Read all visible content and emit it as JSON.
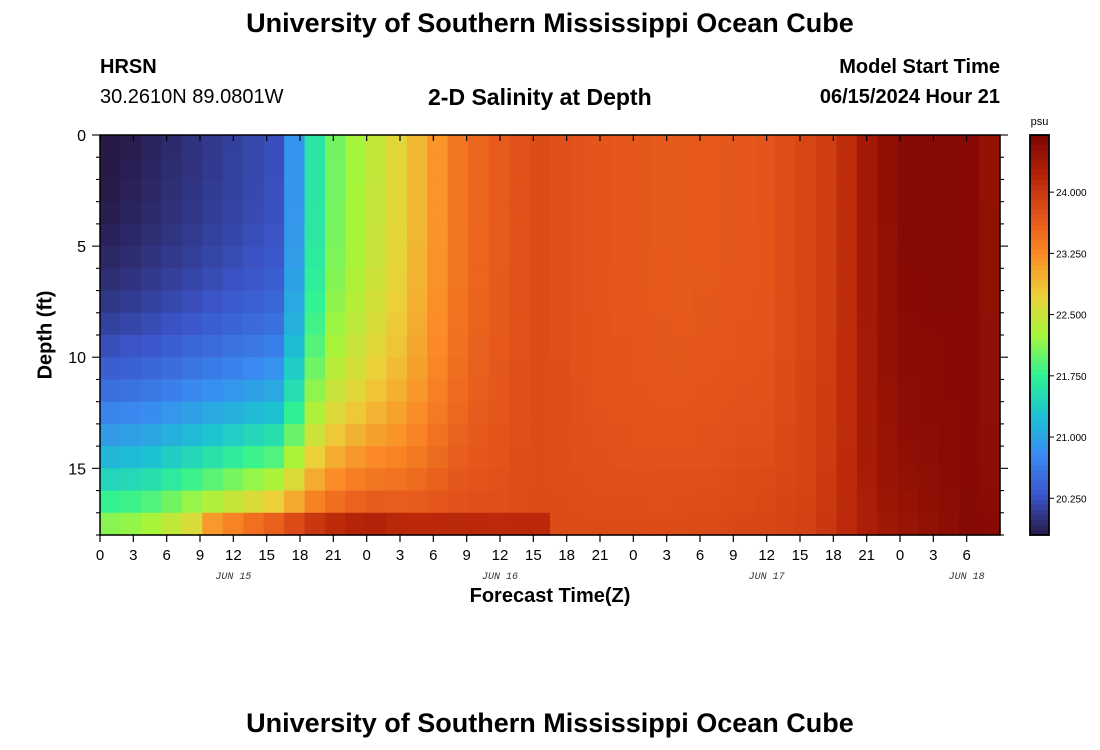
{
  "page": {
    "title": "University of Southern Mississippi Ocean Cube",
    "footer_title": "University of Southern Mississippi Ocean Cube",
    "station": "HRSN",
    "coords": "30.2610N  89.0801W",
    "subtitle": "2-D Salinity at Depth",
    "model_start_label": "Model Start Time",
    "model_start_value": "06/15/2024 Hour 21"
  },
  "chart_data": {
    "type": "heatmap",
    "title": "2-D Salinity at Depth",
    "xlabel": "Forecast Time(Z)",
    "ylabel": "Depth (ft)",
    "x_tick_labels": [
      "0",
      "3",
      "6",
      "9",
      "12",
      "15",
      "18",
      "21",
      "0",
      "3",
      "6",
      "9",
      "12",
      "15",
      "18",
      "21",
      "0",
      "3",
      "6",
      "9",
      "12",
      "15",
      "18",
      "21",
      "0",
      "3",
      "6"
    ],
    "date_labels": [
      {
        "label": "JUN 15",
        "hour_index": 12
      },
      {
        "label": "JUN 16",
        "hour_index": 36
      },
      {
        "label": "JUN 17",
        "hour_index": 60
      },
      {
        "label": "JUN 18",
        "hour_index": 78
      }
    ],
    "x_range_hours": [
      0,
      81
    ],
    "y_ticks": [
      0,
      5,
      10,
      15
    ],
    "y_range": [
      0,
      18
    ],
    "y_inverted": true,
    "colorbar": {
      "unit": "psu",
      "range": [
        19.8,
        24.7
      ],
      "tick_values": [
        20.25,
        21.0,
        21.75,
        22.5,
        23.25,
        24.0
      ],
      "tick_labels": [
        "20.250",
        "21.000",
        "21.750",
        "22.500",
        "23.250",
        "24.000"
      ],
      "colors": [
        "#271a48",
        "#3b55c9",
        "#3a8bf2",
        "#1cc2d2",
        "#31f294",
        "#a6f53b",
        "#ecd03a",
        "#fb8a26",
        "#e3531a",
        "#b52308",
        "#7a0403"
      ]
    },
    "time_columns": 44,
    "depth_layers": 18,
    "time_profile_psu": [
      19.9,
      20.25,
      21.9,
      22.7,
      23.5,
      23.8,
      23.7,
      23.65,
      23.7,
      23.95,
      24.35,
      24.6,
      24.6,
      24.45
    ],
    "time_profile_hours": [
      0,
      16,
      20,
      27,
      33,
      39,
      45,
      52,
      60,
      66,
      69,
      72,
      78,
      81
    ],
    "deep_layer_psu": [
      22.3,
      22.4,
      22.8,
      23.4,
      23.9,
      24.05,
      23.9,
      23.8,
      23.8,
      23.9,
      24.35,
      24.6
    ],
    "deep_layer_hours": [
      0,
      4,
      8,
      14,
      20,
      24,
      27,
      36,
      52,
      64,
      70,
      78
    ]
  }
}
